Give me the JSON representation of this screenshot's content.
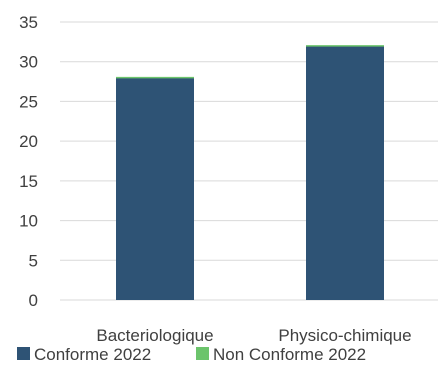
{
  "chart_data": {
    "type": "bar",
    "stacked": true,
    "categories": [
      "Bacteriologique",
      "Physico-chimique"
    ],
    "series": [
      {
        "name": "Conforme 2022",
        "values": [
          28,
          32
        ],
        "color": "#2E5375"
      },
      {
        "name": "Non Conforme 2022",
        "values": [
          0,
          0
        ],
        "color": "#6CC46C"
      }
    ],
    "ylim": [
      0,
      35
    ],
    "yticks": [
      0,
      5,
      10,
      15,
      20,
      25,
      30,
      35
    ],
    "grid": true,
    "legend_position": "bottom",
    "title": "",
    "xlabel": "",
    "ylabel": ""
  }
}
